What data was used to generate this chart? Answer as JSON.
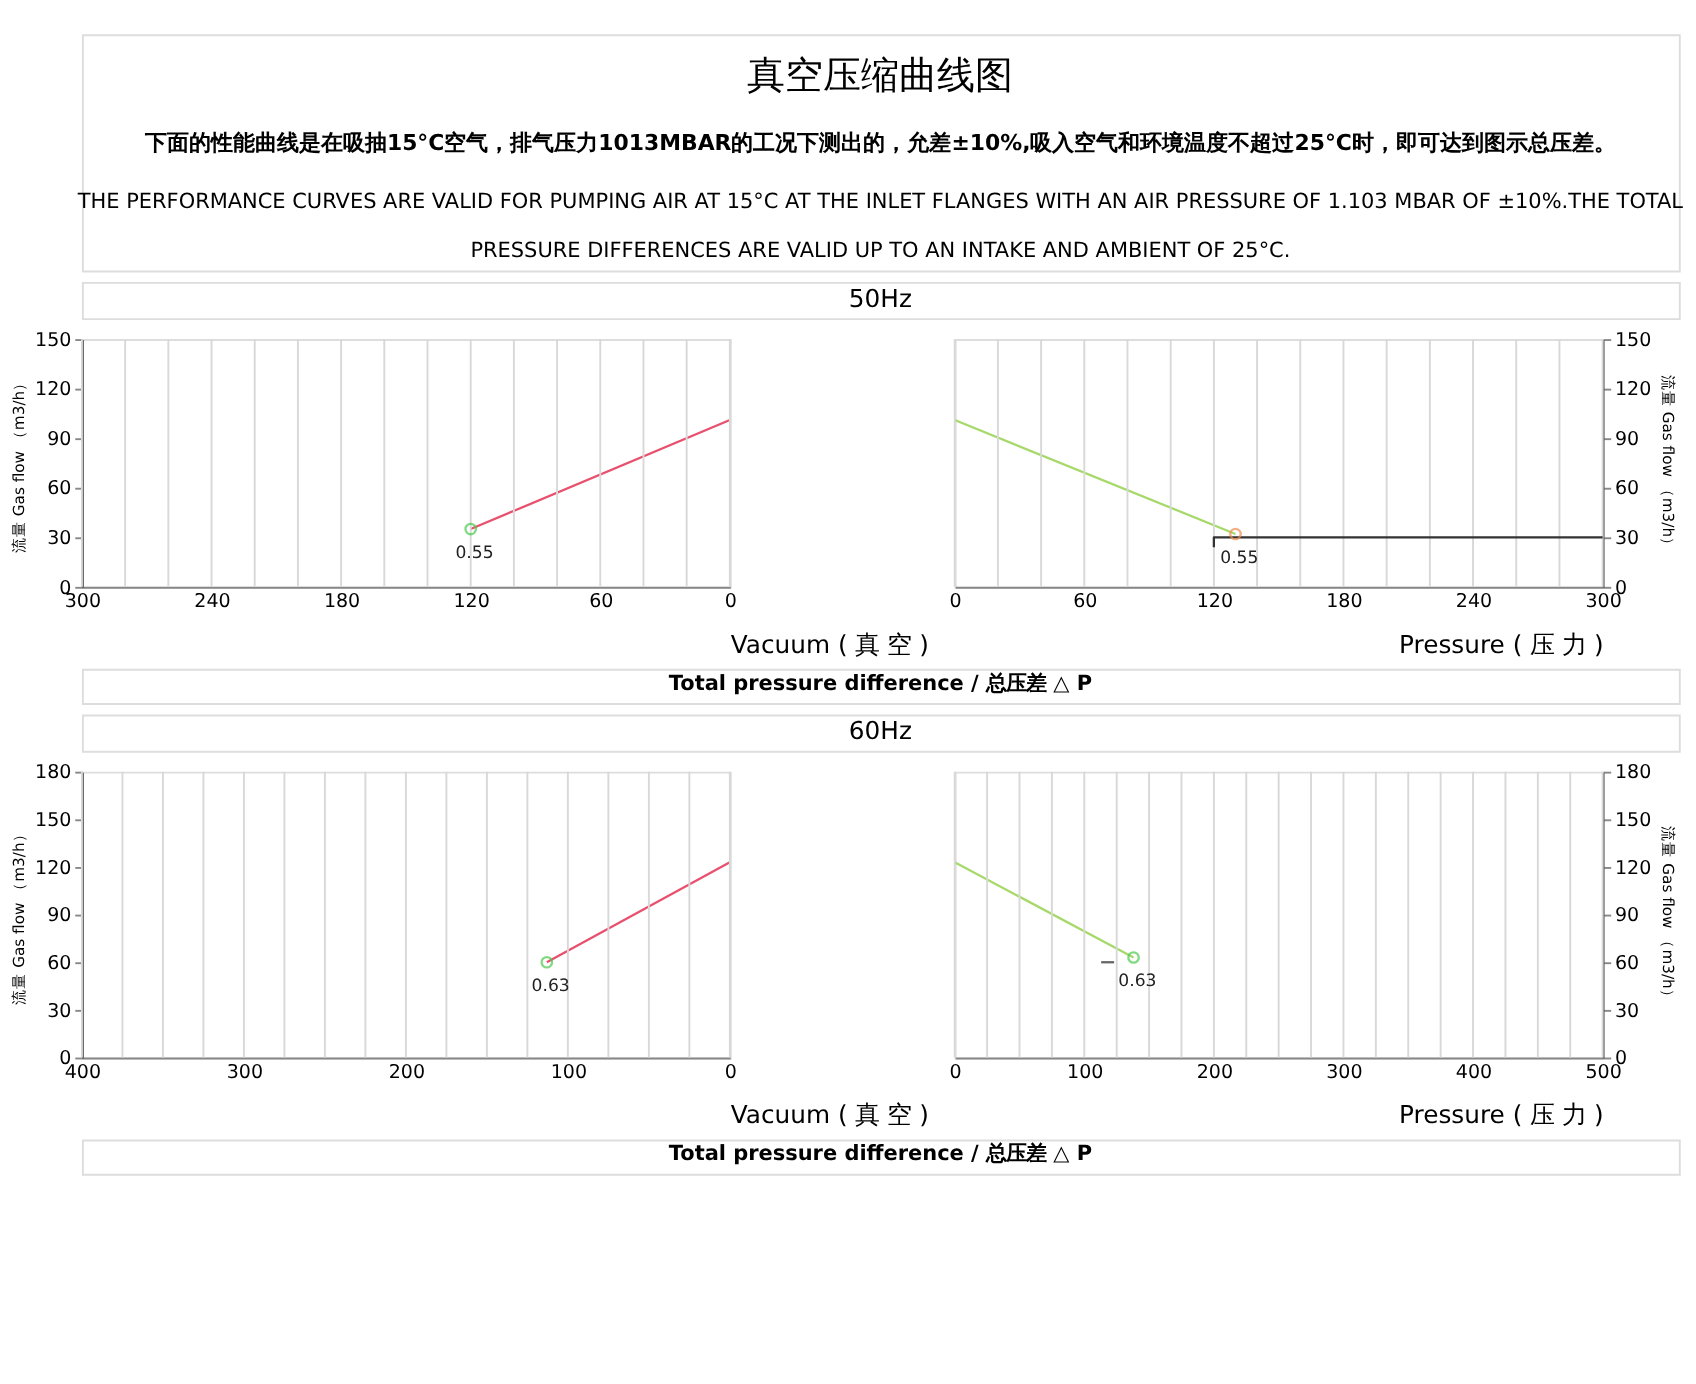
{
  "chart_data": [
    {
      "type": "other",
      "title": "真空压缩曲线图",
      "subtitle": "下面的性能曲线是在吸抽15°C空气，排气压力1013MBAR的工况下测出的，允差±10%,吸入空气和环境温度不超过25°C时，即可达到图示总压差。",
      "annotations": [
        "THE PERFORMANCE CURVES ARE VALID FOR PUMPING AIR AT 15°C AT THE INLET FLANGES WITH AN AIR PRESSURE OF 1.103 MBAR OF ±10%.THE TOTAL",
        "PRESSURE DIFFERENCES ARE VALID UP TO AN INTAKE AND AMBIENT OF 25°C."
      ]
    },
    {
      "type": "other",
      "title": "50Hz"
    },
    {
      "type": "line",
      "xlabel": "Vacuum ( 真 空 )",
      "ylabel": "流量 Gas flow （m3/h）",
      "xlim": [
        300,
        0
      ],
      "xticks": [
        300,
        {
          "value": 280,
          "label": null
        },
        {
          "value": 260,
          "label": null
        },
        240,
        {
          "value": 220,
          "label": null
        },
        {
          "value": 200,
          "label": null
        },
        180,
        {
          "value": 160,
          "label": null
        },
        {
          "value": 140,
          "label": null
        },
        120,
        {
          "value": 100,
          "label": null
        },
        {
          "value": 80,
          "label": null
        },
        60,
        {
          "value": 40,
          "label": null
        },
        {
          "value": 20,
          "label": null
        },
        0
      ],
      "ylim": [
        0,
        150
      ],
      "yticks": [
        0,
        30,
        60,
        90,
        120,
        150
      ],
      "grid": "x",
      "annotations": [
        {
          "text": "0.55",
          "x": 120,
          "y": 35
        }
      ],
      "series": [
        {
          "type": "line",
          "color": "#e8506e",
          "x": [
            120,
            0
          ],
          "values": [
            35,
            101
          ]
        },
        {
          "type": "scatter",
          "color": "#4cc94c",
          "marker": "circle",
          "x": [
            120
          ],
          "values": [
            35
          ]
        }
      ]
    },
    {
      "type": "line",
      "xlabel": "Pressure ( 压 力 )",
      "ylabel": "流量 Gas flow （m3/h）",
      "xlim": [
        0,
        300
      ],
      "xticks": [
        0,
        {
          "value": 20,
          "label": null
        },
        {
          "value": 40,
          "label": null
        },
        60,
        {
          "value": 80,
          "label": null
        },
        {
          "value": 100,
          "label": null
        },
        120,
        {
          "value": 140,
          "label": null
        },
        {
          "value": 160,
          "label": null
        },
        180,
        {
          "value": 200,
          "label": null
        },
        {
          "value": 220,
          "label": null
        },
        240,
        {
          "value": 260,
          "label": null
        },
        {
          "value": 280,
          "label": null
        },
        300
      ],
      "ylim": [
        0,
        150
      ],
      "yticks": [
        0,
        30,
        60,
        90,
        120,
        150
      ],
      "grid": "x",
      "annotations": [
        {
          "text": "0.55",
          "x": 130,
          "y": 32
        }
      ],
      "series": [
        {
          "type": "line",
          "color": "#a6d96a",
          "x": [
            0,
            130
          ],
          "values": [
            101,
            32
          ]
        },
        {
          "type": "line",
          "color": "#333333",
          "x": [
            120,
            120,
            300
          ],
          "values": [
            24,
            30,
            30
          ]
        },
        {
          "type": "scatter",
          "color": "#f08c50",
          "marker": "circle",
          "x": [
            130
          ],
          "values": [
            32
          ]
        }
      ]
    },
    {
      "type": "other",
      "annotations": [
        "Total pressure difference / 总压差 △ P"
      ]
    },
    {
      "type": "other",
      "title": "60Hz"
    },
    {
      "type": "line",
      "xlabel": "Vacuum ( 真 空 )",
      "ylabel": "流量 Gas flow （m3/h）",
      "xlim": [
        400,
        0
      ],
      "xticks": [
        400,
        {
          "value": 375,
          "label": null
        },
        {
          "value": 350,
          "label": null
        },
        {
          "value": 325,
          "label": null
        },
        300,
        {
          "value": 275,
          "label": null
        },
        {
          "value": 250,
          "label": null
        },
        {
          "value": 225,
          "label": null
        },
        200,
        {
          "value": 175,
          "label": null
        },
        {
          "value": 150,
          "label": null
        },
        {
          "value": 125,
          "label": null
        },
        100,
        {
          "value": 75,
          "label": null
        },
        {
          "value": 50,
          "label": null
        },
        {
          "value": 25,
          "label": null
        },
        0
      ],
      "ylim": [
        0,
        180
      ],
      "yticks": [
        0,
        30,
        60,
        90,
        120,
        150,
        180
      ],
      "grid": "x",
      "annotations": [
        {
          "text": "0.63",
          "x": 113,
          "y": 60
        }
      ],
      "series": [
        {
          "type": "line",
          "color": "#e8506e",
          "x": [
            113,
            0
          ],
          "values": [
            60,
            123
          ]
        },
        {
          "type": "scatter",
          "color": "#4cc94c",
          "marker": "circle",
          "x": [
            113
          ],
          "values": [
            60
          ]
        }
      ]
    },
    {
      "type": "line",
      "xlabel": "Pressure ( 压 力 )",
      "ylabel": "流量 Gas flow （m3/h）",
      "xlim": [
        0,
        500
      ],
      "xticks": [
        0,
        {
          "value": 25,
          "label": null
        },
        {
          "value": 50,
          "label": null
        },
        {
          "value": 75,
          "label": null
        },
        100,
        {
          "value": 125,
          "label": null
        },
        {
          "value": 150,
          "label": null
        },
        {
          "value": 175,
          "label": null
        },
        200,
        {
          "value": 225,
          "label": null
        },
        {
          "value": 250,
          "label": null
        },
        {
          "value": 275,
          "label": null
        },
        300,
        {
          "value": 325,
          "label": null
        },
        {
          "value": 350,
          "label": null
        },
        {
          "value": 375,
          "label": null
        },
        400,
        {
          "value": 425,
          "label": null
        },
        {
          "value": 450,
          "label": null
        },
        {
          "value": 475,
          "label": null
        },
        500
      ],
      "ylim": [
        0,
        180
      ],
      "yticks": [
        0,
        30,
        60,
        90,
        120,
        150,
        180
      ],
      "grid": "x",
      "annotations": [
        {
          "text": "0.63",
          "x": 138,
          "y": 63
        }
      ],
      "series": [
        {
          "type": "line",
          "color": "#a6d96a",
          "x": [
            0,
            138
          ],
          "values": [
            123,
            63
          ]
        },
        {
          "type": "line",
          "color": "#666666",
          "x": [
            113,
            123
          ],
          "values": [
            60,
            60
          ]
        },
        {
          "type": "scatter",
          "color": "#4cc94c",
          "marker": "circle",
          "x": [
            138
          ],
          "values": [
            63
          ]
        }
      ]
    },
    {
      "type": "other",
      "annotations": [
        "Total pressure difference / 总压差 △ P"
      ]
    }
  ]
}
